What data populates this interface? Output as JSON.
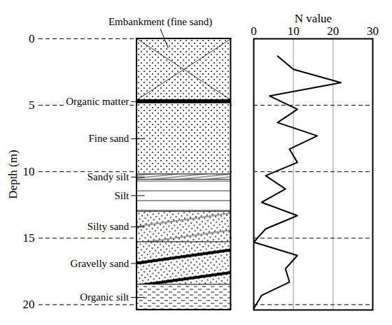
{
  "chart_data": {
    "type": "line",
    "x_label": "N value",
    "y_label": "Depth (m)",
    "xlim": [
      0,
      30
    ],
    "xticks": [
      0,
      10,
      20,
      30
    ],
    "ylim": [
      0,
      20.4
    ],
    "yticks": [
      0,
      5,
      10,
      15,
      20
    ],
    "grid": true,
    "color": "#000000",
    "marker": "none",
    "line_style": "solid",
    "x": [
      6,
      10,
      22,
      4,
      11,
      6,
      16,
      9,
      11,
      3,
      8,
      2,
      11,
      3,
      0,
      11,
      8,
      9,
      2,
      0
    ],
    "y": [
      1.3,
      2.3,
      3.3,
      4.3,
      5.3,
      6.3,
      7.3,
      8.3,
      9.3,
      10.3,
      11.3,
      12.3,
      13.3,
      14.3,
      15.3,
      16.3,
      17.3,
      18.3,
      19.3,
      20.3
    ],
    "layers": [
      {
        "name": "Embankment (fine sand)",
        "top": 0,
        "bottom": 4.6,
        "marker": "cross"
      },
      {
        "name": "Organic matter",
        "top": 4.6,
        "bottom": 4.85,
        "marker": "solid"
      },
      {
        "name": "Fine sand",
        "top": 4.85,
        "bottom": 10.2,
        "marker": "dots"
      },
      {
        "name": "Sandy silt",
        "top": 10.2,
        "bottom": 10.6,
        "marker": "slant"
      },
      {
        "name": "Silt",
        "top": 10.6,
        "bottom": 13.0,
        "marker": "hlines"
      },
      {
        "name": "Silty sand",
        "top": 13.0,
        "bottom": 15.3,
        "marker": "dots_slant"
      },
      {
        "name": "Gravelly sand",
        "top": 15.3,
        "bottom": 18.5,
        "marker": "bands"
      },
      {
        "name": "Organic silt",
        "top": 18.5,
        "bottom": 20.4,
        "marker": "dashes"
      }
    ]
  }
}
